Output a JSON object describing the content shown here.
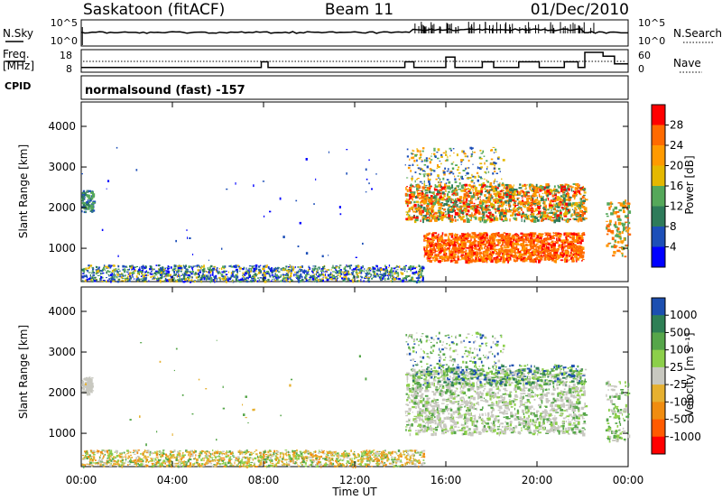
{
  "header": {
    "station": "Saskatoon (fitACF)",
    "beam": "Beam 11",
    "date": "01/Dec/2010"
  },
  "noise_panel": {
    "left_label": "N.Sky",
    "left_ticks": [
      "10^5",
      "10^0"
    ],
    "right_ticks": [
      "10^5",
      "10^0"
    ],
    "right_label": "N.Search"
  },
  "freq_panel": {
    "left_label_line1": "Freq.",
    "left_label_line2": "[MHz]",
    "left_ticks": [
      "18",
      "8"
    ],
    "right_ticks": [
      "60",
      "0"
    ],
    "right_label": "Nave"
  },
  "cpid_label": "CPID",
  "mode_text": "normalsound (fast) -157",
  "power_panel": {
    "ylabel": "Slant Range [km]",
    "yticks": [
      "4000",
      "3000",
      "2000",
      "1000"
    ],
    "colorbar": {
      "label": "Power [dB]",
      "ticks": [
        "28",
        "24",
        "20",
        "16",
        "12",
        "8",
        "4"
      ],
      "colors": [
        "#ff0000",
        "#ff6a00",
        "#ff9a00",
        "#e5b800",
        "#55a85a",
        "#2e7b5a",
        "#1d4fb8",
        "#0000ff"
      ]
    }
  },
  "velocity_panel": {
    "ylabel": "Slant Range [km]",
    "yticks": [
      "4000",
      "3000",
      "2000",
      "1000"
    ],
    "colorbar": {
      "label": "Velocity [m s⁻¹]",
      "ticks": [
        "1000",
        "500",
        "100",
        "25",
        "-25",
        "-100",
        "-500",
        "-1000"
      ],
      "colors": [
        "#1c4fb0",
        "#2e7f55",
        "#56a64a",
        "#8ccf4a",
        "#c8c8c0",
        "#e6b030",
        "#f08c10",
        "#ff5a00",
        "#ff0000"
      ]
    }
  },
  "x_axis": {
    "ticks": [
      "00:00",
      "04:00",
      "08:00",
      "12:00",
      "16:00",
      "20:00",
      "00:00"
    ],
    "label": "Time UT"
  },
  "chart_data": {
    "type": "heatmap",
    "title": "Saskatoon (fitACF) Beam 11 01/Dec/2010",
    "x_unit": "hours UT",
    "x_range": [
      0,
      24
    ],
    "y_range_km": [
      180,
      4600
    ],
    "panels": [
      {
        "name": "Power",
        "ylabel": "Slant Range [km]",
        "zlabel": "Power [dB]",
        "z_range": [
          0,
          30
        ],
        "regions": [
          {
            "t": [
              14.2,
              22.1
            ],
            "r": [
              1700,
              2600
            ],
            "z": 20
          },
          {
            "t": [
              15.0,
              22.0
            ],
            "r": [
              700,
              1400
            ],
            "z": 26
          },
          {
            "t": [
              14.2,
              18.5
            ],
            "r": [
              2600,
              3500
            ],
            "z": 12
          },
          {
            "t": [
              0.0,
              15.0
            ],
            "r": [
              200,
              600
            ],
            "z": 6
          },
          {
            "t": [
              0.0,
              0.5
            ],
            "r": [
              2000,
              2450
            ],
            "z": 12
          }
        ]
      },
      {
        "name": "Velocity",
        "ylabel": "Slant Range [km]",
        "zlabel": "Velocity [m s^-1]",
        "z_range": [
          -1000,
          1000
        ],
        "regions": [
          {
            "t": [
              14.2,
              22.1
            ],
            "r": [
              1000,
              2600
            ],
            "v": 0
          },
          {
            "t": [
              14.5,
              22.0
            ],
            "r": [
              2200,
              2600
            ],
            "v": 100
          },
          {
            "t": [
              0.0,
              15.0
            ],
            "r": [
              200,
              600
            ],
            "v": -80
          },
          {
            "t": [
              0.0,
              0.4
            ],
            "r": [
              2000,
              2400
            ],
            "v": 0
          }
        ]
      }
    ]
  }
}
